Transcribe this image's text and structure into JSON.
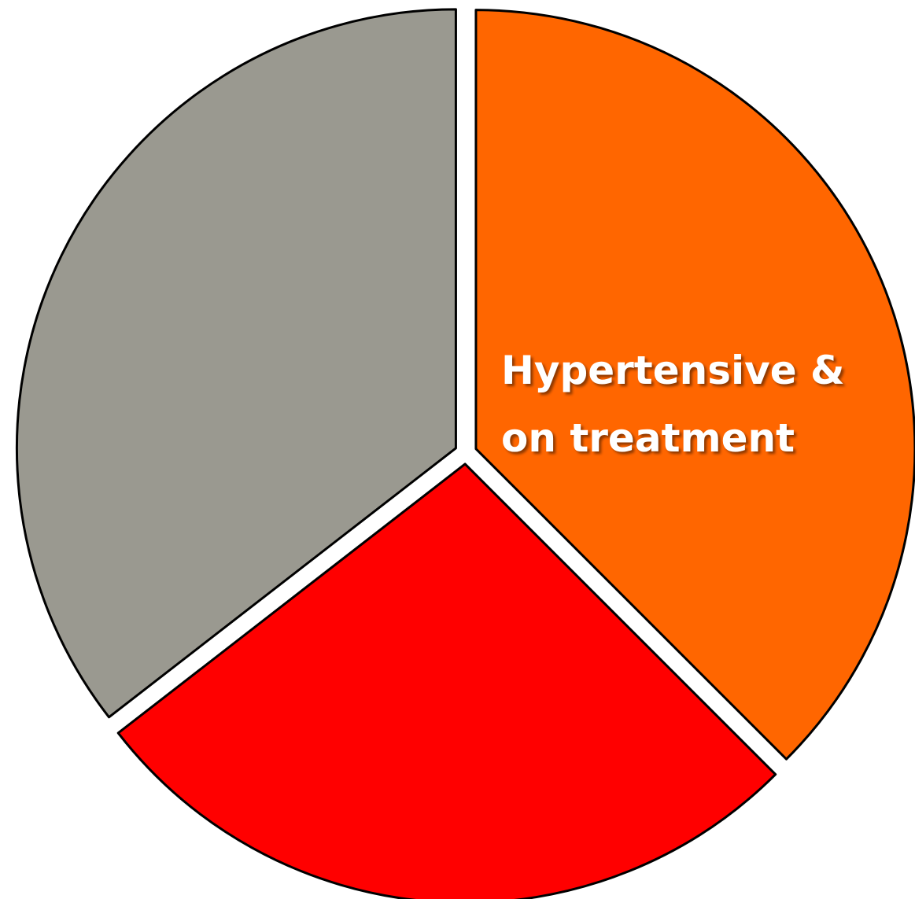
{
  "chart_data": {
    "type": "pie",
    "categories": [
      "Hypertensive & on treatment",
      null,
      null
    ],
    "values": [
      37.5,
      27,
      35.5
    ],
    "colors": [
      "#ff6600",
      "#ff0000",
      "#9a9990"
    ]
  }
}
